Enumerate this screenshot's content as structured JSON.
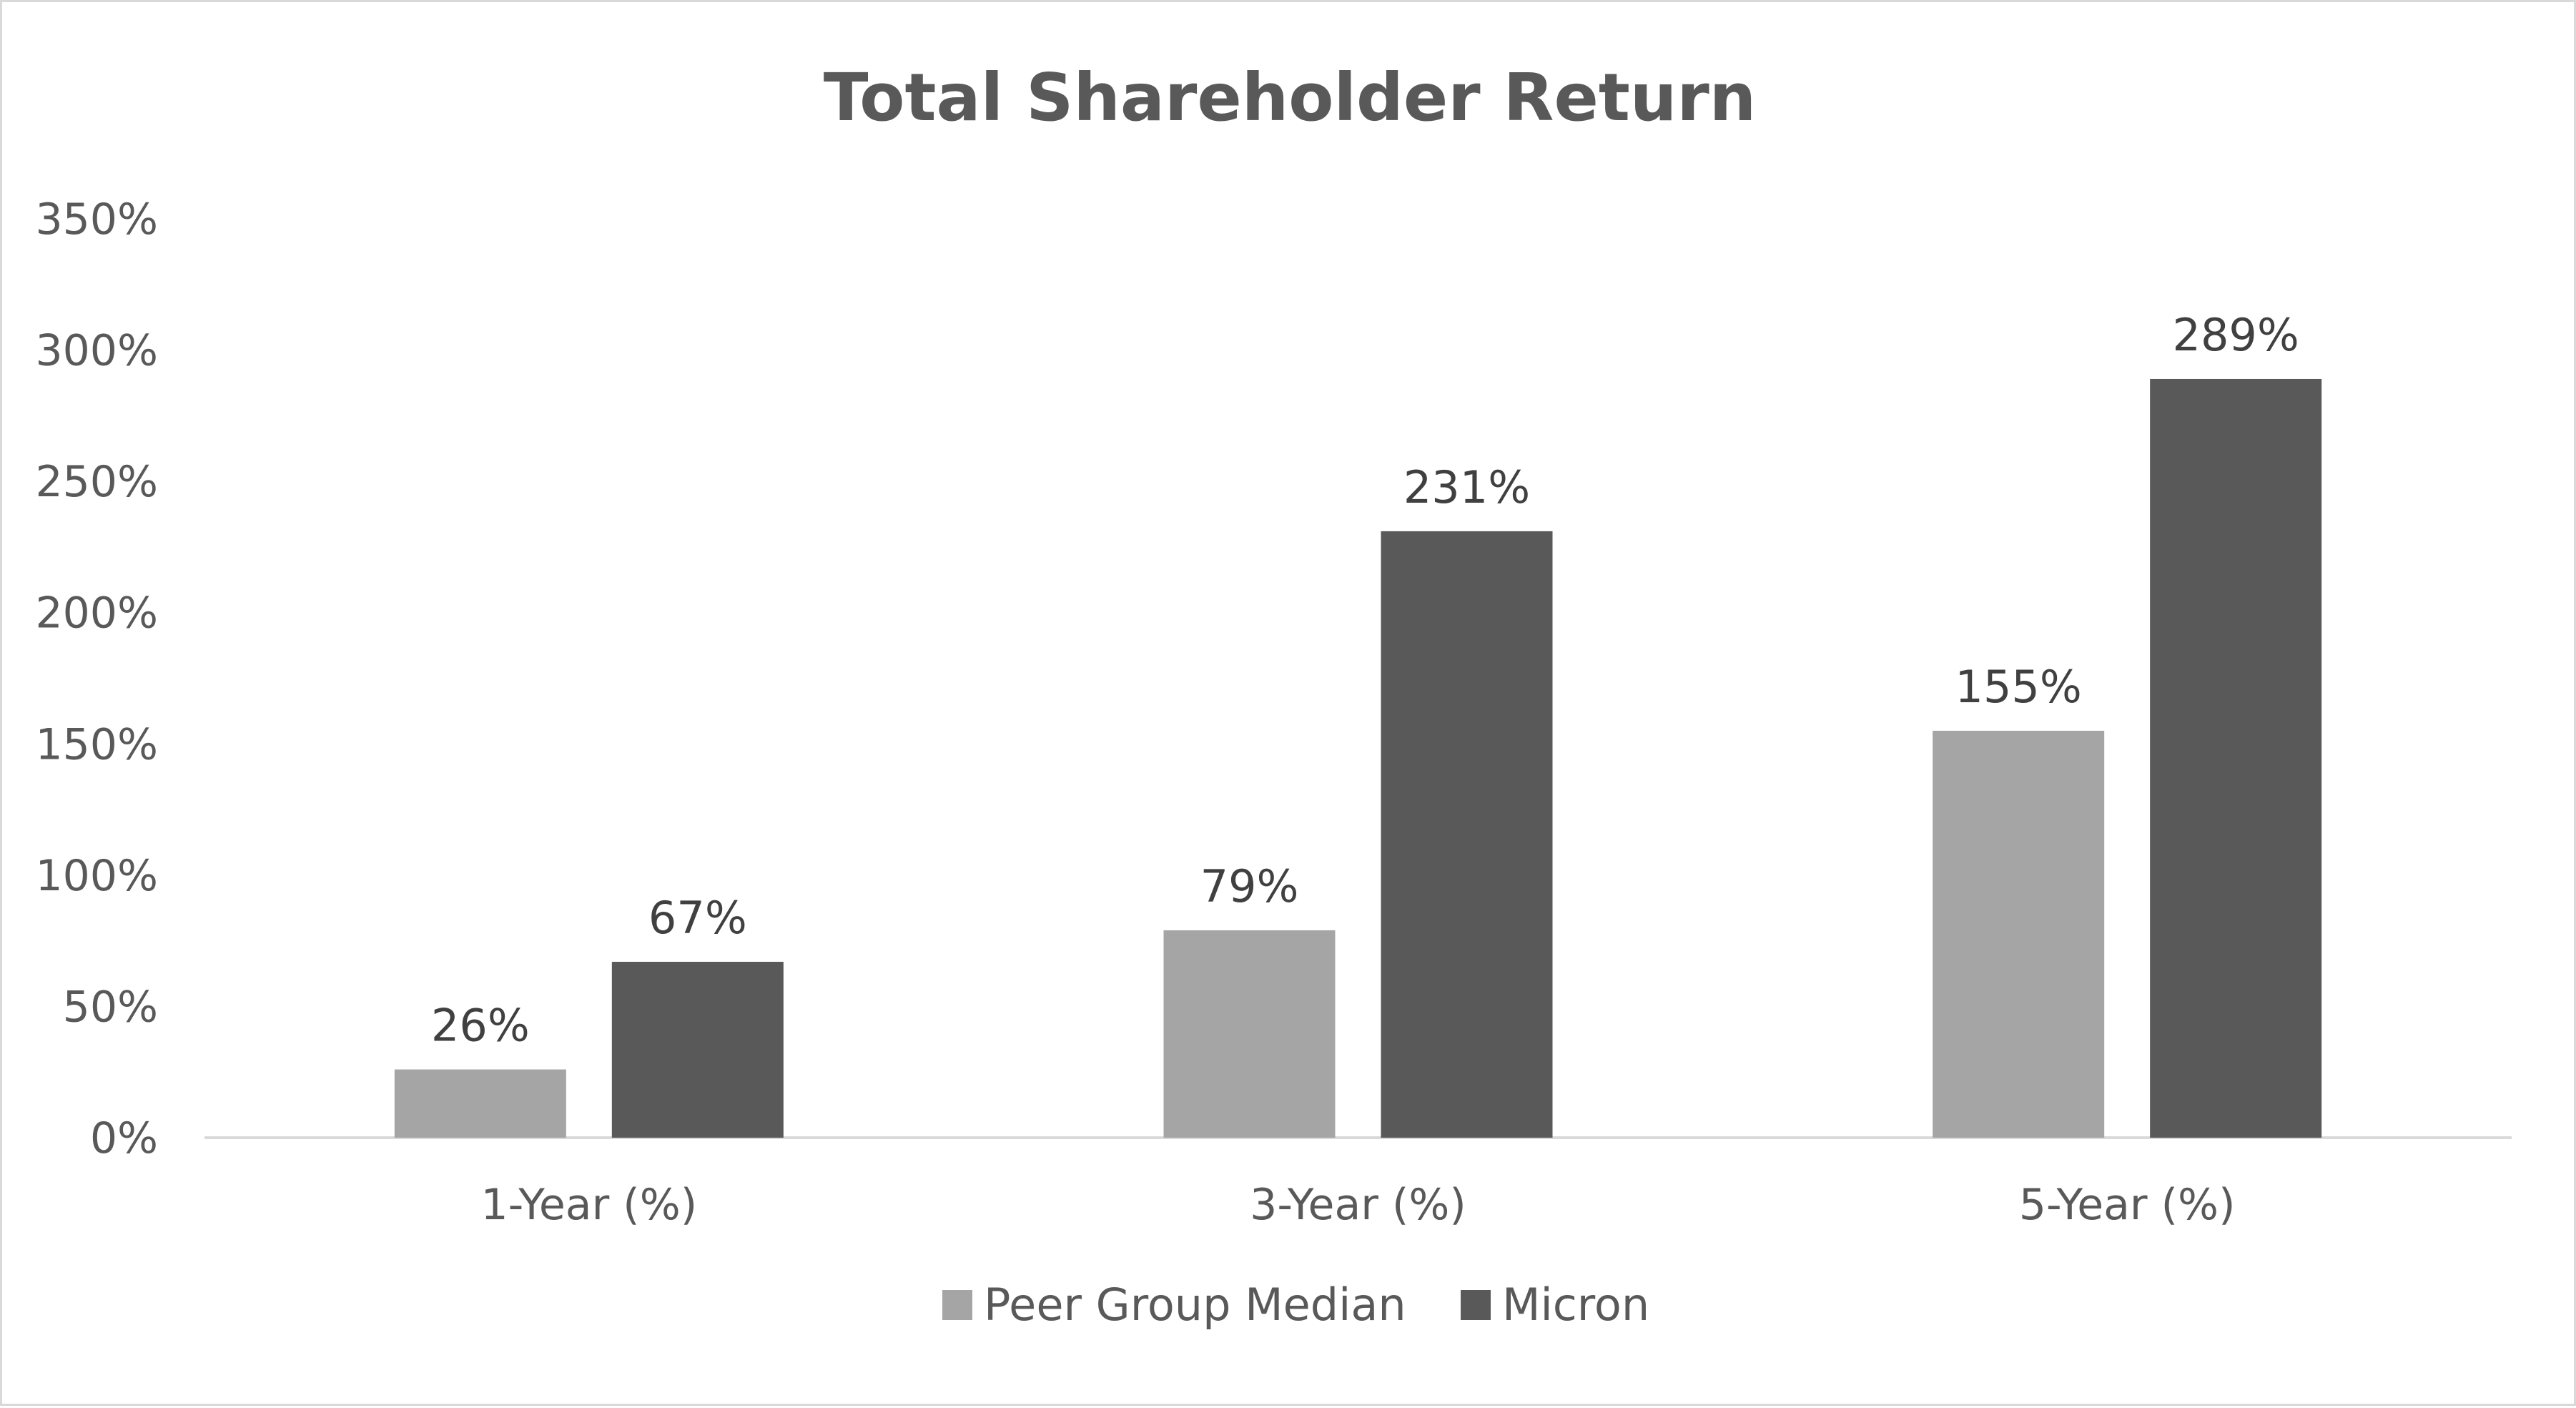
{
  "chart_data": {
    "type": "bar",
    "title": "Total Shareholder Return",
    "xlabel": "",
    "ylabel": "",
    "categories": [
      "1-Year (%)",
      "3-Year (%)",
      "5-Year (%)"
    ],
    "series": [
      {
        "name": "Peer Group Median",
        "values": [
          26,
          79,
          155
        ],
        "labels": [
          "26%",
          "79%",
          "155%"
        ],
        "color": "#a5a5a5"
      },
      {
        "name": "Micron",
        "values": [
          67,
          231,
          289
        ],
        "labels": [
          "67%",
          "231%",
          "289%"
        ],
        "color": "#595959"
      }
    ],
    "ylim": [
      0,
      350
    ],
    "yticks": [
      0,
      50,
      100,
      150,
      200,
      250,
      300,
      350
    ],
    "ytick_labels": [
      "0%",
      "50%",
      "100%",
      "150%",
      "200%",
      "250%",
      "300%",
      "350%"
    ],
    "grid": false,
    "legend": "bottom",
    "colors": {
      "axis": "#d9d9d9",
      "text": "#595959",
      "data_label": "#404040",
      "border": "#d9d9d9"
    }
  }
}
